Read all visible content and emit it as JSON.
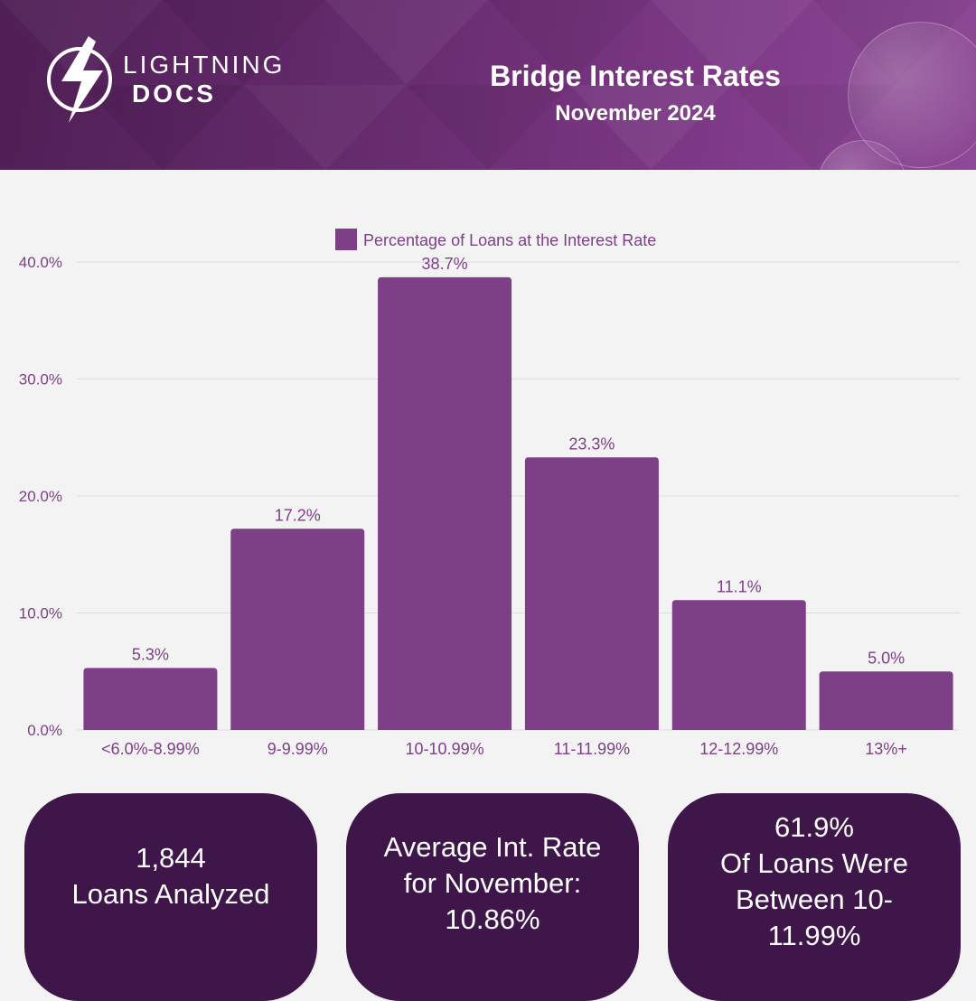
{
  "brand": {
    "line1": "LIGHTNING",
    "line2": "DOCS"
  },
  "header": {
    "title": "Bridge Interest Rates",
    "subtitle": "November 2024"
  },
  "colors": {
    "header": "#6a2d72",
    "bar": "#7d3f86",
    "axis_text": "#7d3f86",
    "card": "#3e164a",
    "background": "#f3f3f3"
  },
  "chart_data": {
    "type": "bar",
    "categories": [
      "<6.0%-8.99%",
      "9-9.99%",
      "10-10.99%",
      "11-11.99%",
      "12-12.99%",
      "13%+"
    ],
    "series": [
      {
        "name": "Percentage of Loans at the Interest Rate",
        "values": [
          5.3,
          17.2,
          38.7,
          23.3,
          11.1,
          5.0
        ]
      }
    ],
    "value_labels": [
      "5.3%",
      "17.2%",
      "38.7%",
      "23.3%",
      "11.1%",
      "5.0%"
    ],
    "yticks": [
      "0.0%",
      "10.0%",
      "20.0%",
      "30.0%",
      "40.0%"
    ],
    "ylim": [
      0,
      40
    ],
    "grid": true,
    "legend_position": "top"
  },
  "cards": [
    {
      "lines": [
        "1,844",
        "Loans Analyzed"
      ]
    },
    {
      "lines": [
        "Average Int. Rate",
        "for November:",
        "10.86%"
      ]
    },
    {
      "lines": [
        "61.9%",
        "Of Loans Were",
        "Between 10-",
        "11.99%"
      ]
    }
  ]
}
